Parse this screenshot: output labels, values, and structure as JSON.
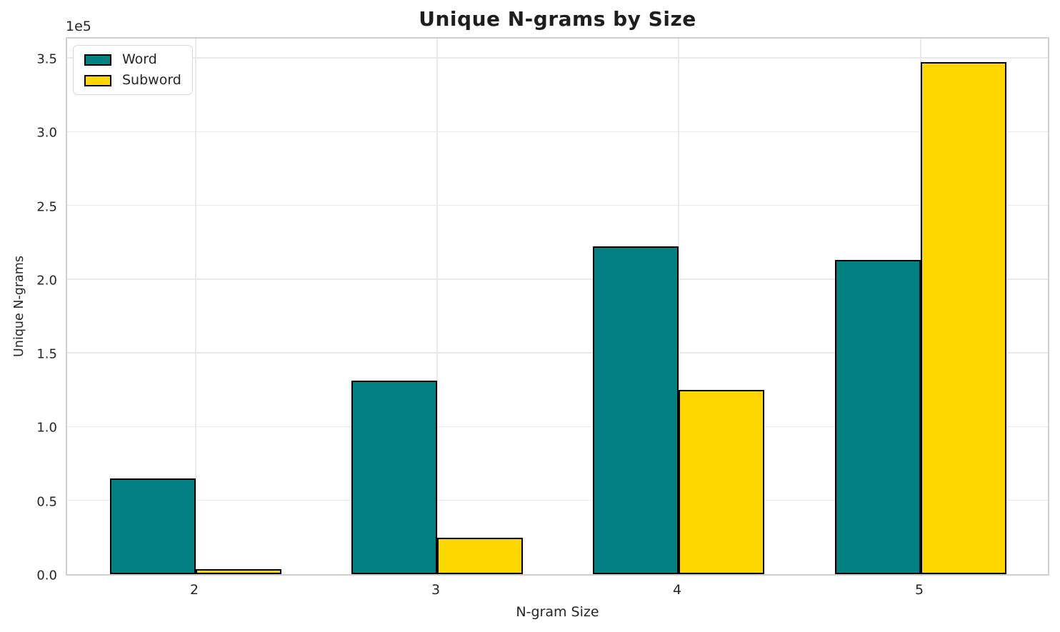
{
  "chart_data": {
    "type": "bar",
    "title": "Unique N-grams by Size",
    "xlabel": "N-gram Size",
    "ylabel": "Unique N-grams",
    "y_offset_text": "1e5",
    "categories": [
      "2",
      "3",
      "4",
      "5"
    ],
    "series": [
      {
        "name": "Word",
        "color": "#008080",
        "values": [
          65000,
          131000,
          222000,
          213000
        ]
      },
      {
        "name": "Subword",
        "color": "#FFD700",
        "values": [
          3200,
          24500,
          125000,
          347000
        ]
      }
    ],
    "ylim": [
      0,
      365000
    ],
    "yticks": [
      0,
      50000,
      100000,
      150000,
      200000,
      250000,
      300000,
      350000
    ],
    "ytick_labels": [
      "0.0",
      "0.5",
      "1.0",
      "1.5",
      "2.0",
      "2.5",
      "3.0",
      "3.5"
    ],
    "grid": true,
    "legend_position": "upper left",
    "bar_edge_color": "#000000",
    "background_color": "#ffffff"
  }
}
